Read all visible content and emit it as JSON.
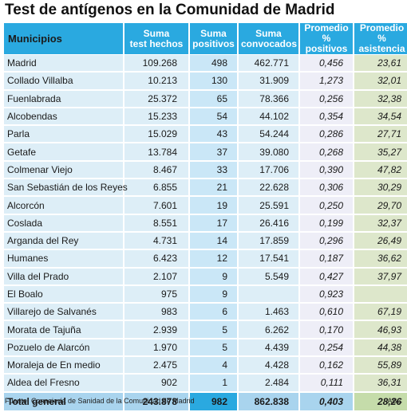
{
  "title": "Test de antígenos en la Comunidad de Madrid",
  "source": "Fuente: Consejería de Sanidad de la Comunidad de Madrid",
  "brand": "ABC",
  "chart_data": {
    "type": "table",
    "headers": [
      "Municipios",
      "Suma test hechos",
      "Suma positivos",
      "Suma convocados",
      "Promedio % positivos",
      "Promedio % asistencia"
    ],
    "rows": [
      [
        "Madrid",
        "109.268",
        "498",
        "462.771",
        "0,456",
        "23,61"
      ],
      [
        "Collado Villalba",
        "10.213",
        "130",
        "31.909",
        "1,273",
        "32,01"
      ],
      [
        "Fuenlabrada",
        "25.372",
        "65",
        "78.366",
        "0,256",
        "32,38"
      ],
      [
        "Alcobendas",
        "15.233",
        "54",
        "44.102",
        "0,354",
        "34,54"
      ],
      [
        "Parla",
        "15.029",
        "43",
        "54.244",
        "0,286",
        "27,71"
      ],
      [
        "Getafe",
        "13.784",
        "37",
        "39.080",
        "0,268",
        "35,27"
      ],
      [
        "Colmenar Viejo",
        "8.467",
        "33",
        "17.706",
        "0,390",
        "47,82"
      ],
      [
        "San Sebastián de los Reyes",
        "6.855",
        "21",
        "22.628",
        "0,306",
        "30,29"
      ],
      [
        "Alcorcón",
        "7.601",
        "19",
        "25.591",
        "0,250",
        "29,70"
      ],
      [
        "Coslada",
        "8.551",
        "17",
        "26.416",
        "0,199",
        "32,37"
      ],
      [
        "Arganda del Rey",
        "4.731",
        "14",
        "17.859",
        "0,296",
        "26,49"
      ],
      [
        "Humanes",
        "6.423",
        "12",
        "17.541",
        "0,187",
        "36,62"
      ],
      [
        "Villa del Prado",
        "2.107",
        "9",
        "5.549",
        "0,427",
        "37,97"
      ],
      [
        "El Boalo",
        "975",
        "9",
        "",
        "0,923",
        ""
      ],
      [
        "Villarejo de Salvanés",
        "983",
        "6",
        "1.463",
        "0,610",
        "67,19"
      ],
      [
        "Morata de Tajuña",
        "2.939",
        "5",
        "6.262",
        "0,170",
        "46,93"
      ],
      [
        "Pozuelo de Alarcón",
        "1.970",
        "5",
        "4.439",
        "0,254",
        "44,38"
      ],
      [
        "Moraleja de En medio",
        "2.475",
        "4",
        "4.428",
        "0,162",
        "55,89"
      ],
      [
        "Aldea del Fresno",
        "902",
        "1",
        "2.484",
        "0,111",
        "36,31"
      ]
    ],
    "total": [
      "Total general",
      "243.878",
      "982",
      "862.838",
      "0,403",
      "28,26"
    ],
    "colors": {
      "header": "#2aa9e0",
      "row_blue": "#ddeef7",
      "positivos_col": "#cae7f7",
      "pct_pos_col": "#eeeef7",
      "asistencia_col": "#dde7cb",
      "total_row": "#a9d4ee"
    }
  }
}
